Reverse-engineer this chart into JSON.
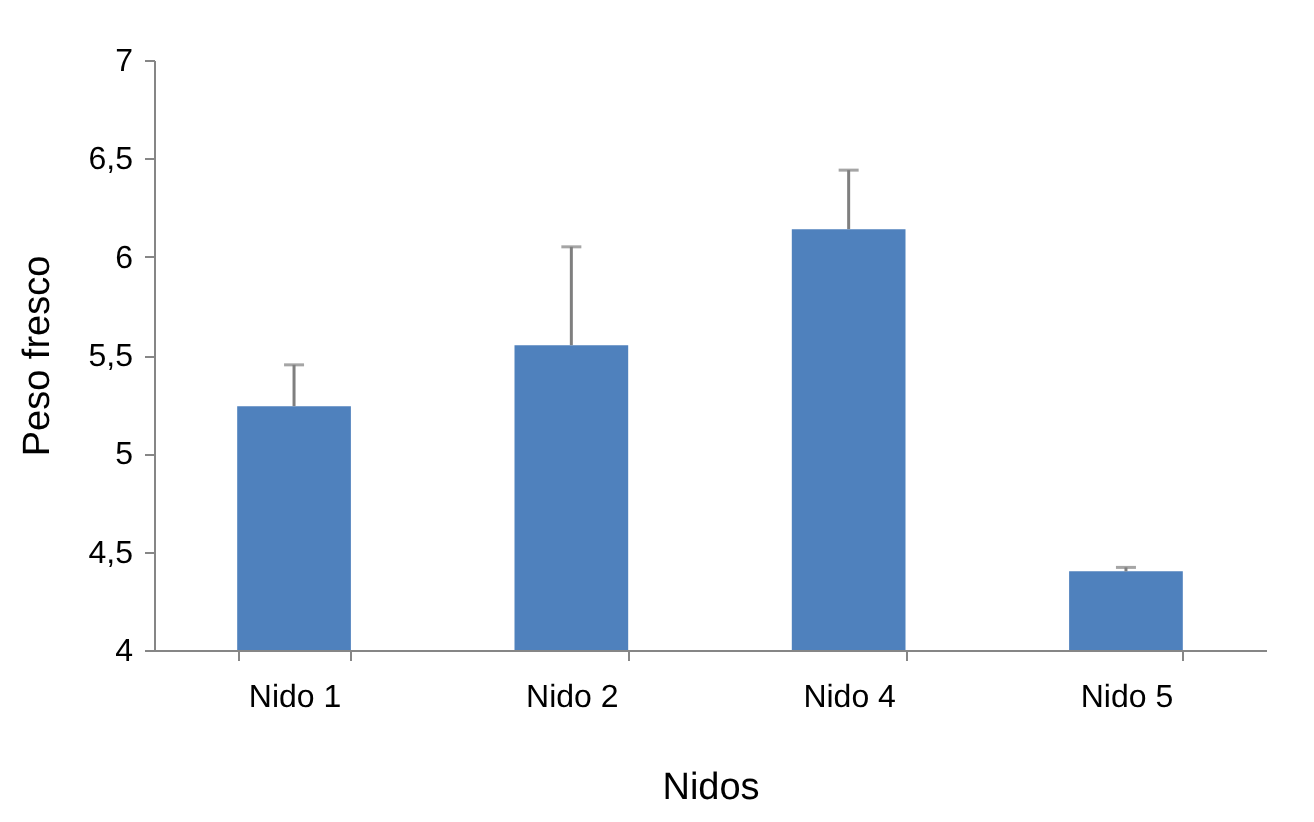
{
  "chart_data": {
    "type": "bar",
    "xlabel": "Nidos",
    "ylabel": "Peso fresco",
    "categories": [
      "Nido 1",
      "Nido 2",
      "Nido 4",
      "Nido 5"
    ],
    "series": [
      {
        "color": "#4f81bd",
        "values": [
          5.24,
          5.55,
          6.14,
          4.4
        ],
        "errors": [
          [
            5.24,
            5.45
          ],
          [
            5.55,
            6.05
          ],
          [
            6.14,
            6.44
          ],
          [
            4.4,
            4.42
          ]
        ]
      }
    ],
    "ylim": [
      4,
      7
    ],
    "yticks": [
      4,
      {
        "value": 4.5,
        "label": "4,5"
      },
      5,
      {
        "value": 5.5,
        "label": "5,5"
      },
      6,
      {
        "value": 6.5,
        "label": "6,5"
      },
      7
    ],
    "grid": false
  }
}
